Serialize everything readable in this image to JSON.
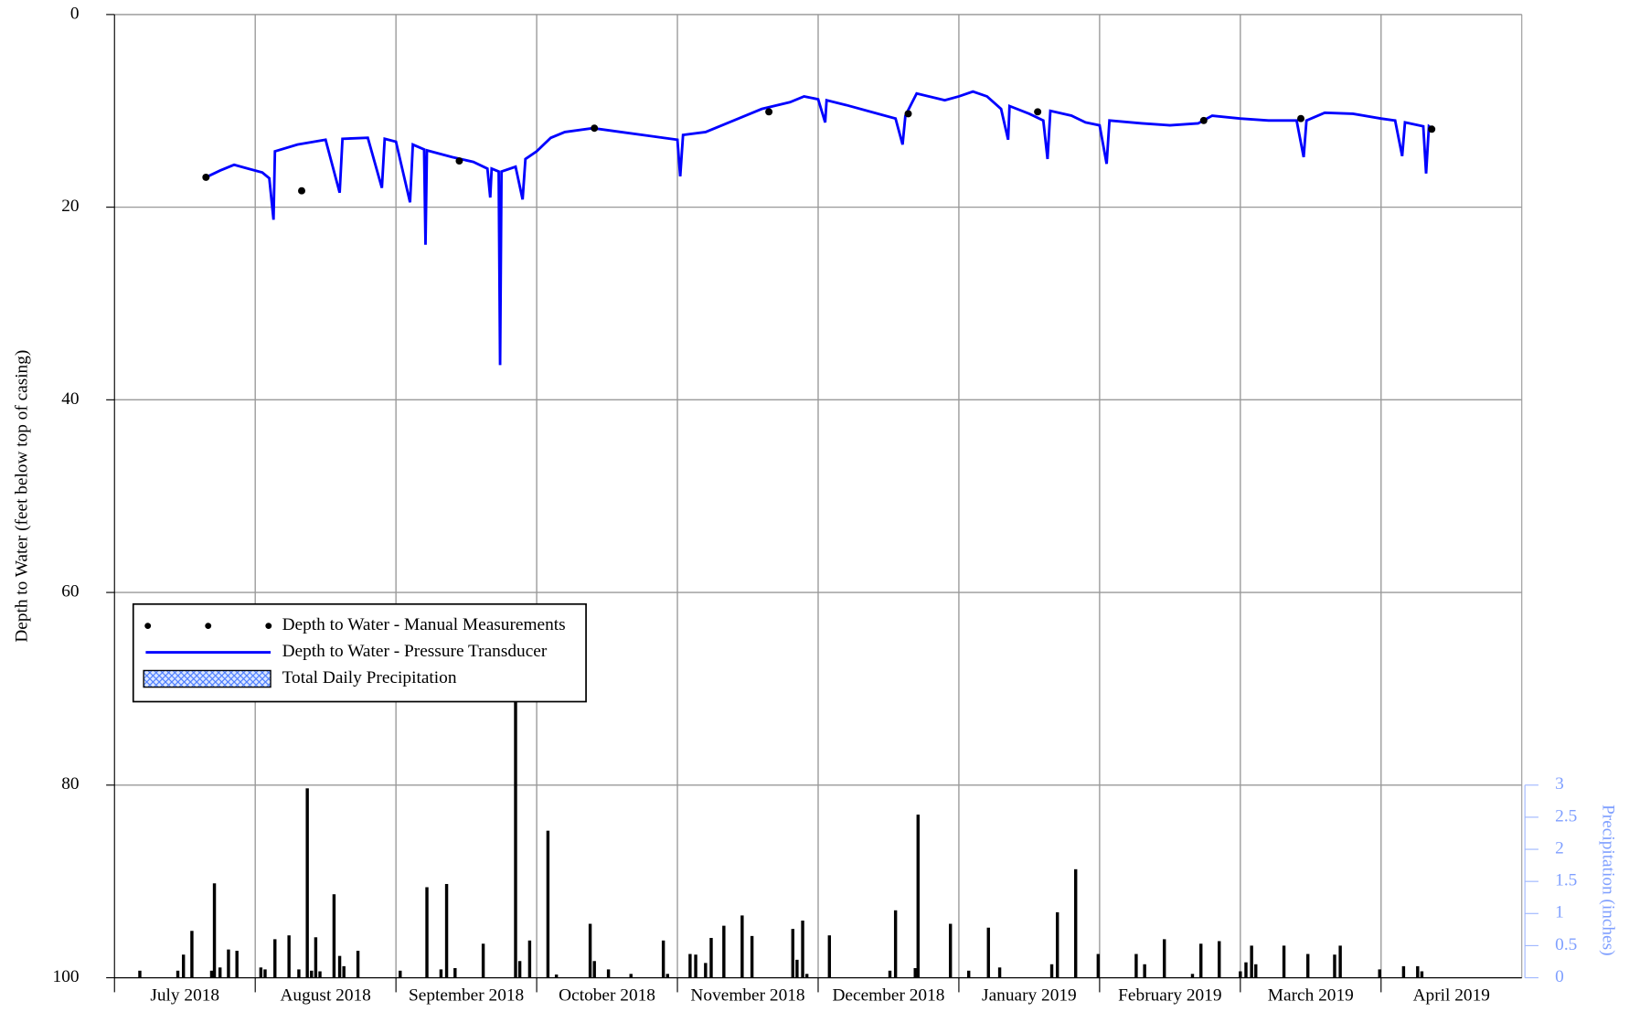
{
  "chart_data": {
    "type": "combo",
    "y_label": "Depth to Water (feet below top of casing)",
    "y2_label": "Precipitation (inches)",
    "xlim": [
      0,
      10
    ],
    "xticks": [
      {
        "value": 0.5,
        "label": "July 2018"
      },
      {
        "value": 1.5,
        "label": "August 2018"
      },
      {
        "value": 2.5,
        "label": "September 2018"
      },
      {
        "value": 3.5,
        "label": "October 2018"
      },
      {
        "value": 4.5,
        "label": "November 2018"
      },
      {
        "value": 5.5,
        "label": "December 2018"
      },
      {
        "value": 6.5,
        "label": "January 2019"
      },
      {
        "value": 7.5,
        "label": "February 2019"
      },
      {
        "value": 8.5,
        "label": "March 2019"
      },
      {
        "value": 9.5,
        "label": "April 2019"
      }
    ],
    "xgrid": [
      1,
      2,
      3,
      4,
      5,
      6,
      7,
      8,
      9
    ],
    "ylim": [
      100,
      0
    ],
    "yticks": [
      0,
      20,
      40,
      60,
      80,
      100
    ],
    "y2lim": [
      0,
      15
    ],
    "y2ticks": [
      0,
      0.5,
      1,
      1.5,
      2,
      2.5,
      3
    ],
    "grid": true,
    "legend": "lower-left",
    "series": [
      {
        "name": "Depth to Water - Manual Measurements",
        "type": "scatter",
        "color": "#000000",
        "x": [
          0.65,
          1.33,
          2.45,
          3.41,
          4.65,
          5.64,
          6.56,
          7.74,
          8.43,
          9.36
        ],
        "values": [
          16.9,
          18.3,
          15.2,
          11.8,
          10.1,
          10.3,
          10.1,
          11.0,
          10.8,
          11.9
        ]
      },
      {
        "name": "Depth to Water - Pressure Transducer",
        "type": "line",
        "color": "#0000ff",
        "x": [
          0.65,
          0.75,
          0.85,
          0.95,
          1.05,
          1.1,
          1.13,
          1.14,
          1.3,
          1.5,
          1.6,
          1.62,
          1.8,
          1.9,
          1.92,
          2.0,
          2.1,
          2.12,
          2.2,
          2.21,
          2.22,
          2.4,
          2.55,
          2.65,
          2.67,
          2.68,
          2.73,
          2.74,
          2.75,
          2.85,
          2.9,
          2.92,
          3.0,
          3.1,
          3.2,
          3.4,
          3.6,
          3.8,
          3.9,
          4.0,
          4.02,
          4.04,
          4.2,
          4.4,
          4.6,
          4.8,
          4.9,
          5.0,
          5.05,
          5.06,
          5.2,
          5.4,
          5.55,
          5.6,
          5.62,
          5.7,
          5.9,
          6.0,
          6.1,
          6.2,
          6.3,
          6.35,
          6.36,
          6.5,
          6.6,
          6.63,
          6.65,
          6.8,
          6.9,
          7.0,
          7.05,
          7.07,
          7.3,
          7.5,
          7.7,
          7.8,
          8.0,
          8.2,
          8.4,
          8.45,
          8.47,
          8.6,
          8.8,
          9.0,
          9.1,
          9.15,
          9.17,
          9.3,
          9.32,
          9.34,
          9.38
        ],
        "values": [
          16.9,
          16.2,
          15.6,
          16.0,
          16.4,
          17.0,
          21.3,
          14.2,
          13.5,
          13.0,
          18.5,
          12.9,
          12.8,
          18.0,
          12.9,
          13.2,
          19.5,
          13.5,
          14.0,
          23.9,
          14.1,
          14.8,
          15.3,
          16.0,
          19.0,
          16.0,
          16.3,
          36.4,
          16.3,
          15.8,
          19.2,
          15.0,
          14.2,
          12.8,
          12.2,
          11.8,
          12.2,
          12.6,
          12.8,
          13.0,
          16.8,
          12.5,
          12.2,
          11.0,
          9.8,
          9.1,
          8.5,
          8.8,
          11.2,
          8.9,
          9.4,
          10.2,
          10.8,
          13.5,
          10.5,
          8.2,
          8.9,
          8.5,
          8.0,
          8.5,
          9.8,
          13.0,
          9.5,
          10.3,
          11.0,
          15.0,
          10.0,
          10.5,
          11.2,
          11.5,
          15.5,
          11.0,
          11.3,
          11.5,
          11.3,
          10.5,
          10.8,
          11.0,
          11.0,
          14.8,
          11.0,
          10.2,
          10.3,
          10.8,
          11.0,
          14.7,
          11.2,
          11.6,
          16.5,
          11.6,
          12.0
        ]
      },
      {
        "name": "Total Daily Precipitation",
        "type": "bar",
        "axis": "y2",
        "color": "#000000",
        "x": [
          0.18,
          0.45,
          0.49,
          0.55,
          0.69,
          0.71,
          0.75,
          0.81,
          0.87,
          1.04,
          1.07,
          1.14,
          1.24,
          1.31,
          1.37,
          1.4,
          1.43,
          1.46,
          1.56,
          1.6,
          1.63,
          1.73,
          2.03,
          2.22,
          2.32,
          2.36,
          2.42,
          2.62,
          2.85,
          2.88,
          2.95,
          3.08,
          3.14,
          3.38,
          3.41,
          3.51,
          3.67,
          3.9,
          3.93,
          4.09,
          4.13,
          4.2,
          4.24,
          4.33,
          4.46,
          4.53,
          4.82,
          4.85,
          4.89,
          4.92,
          5.08,
          5.51,
          5.55,
          5.69,
          5.71,
          5.94,
          6.07,
          6.21,
          6.29,
          6.66,
          6.7,
          6.83,
          6.99,
          7.26,
          7.32,
          7.46,
          7.66,
          7.72,
          7.85,
          8.0,
          8.04,
          8.08,
          8.11,
          8.31,
          8.48,
          8.67,
          8.71,
          8.99,
          9.16,
          9.26,
          9.29
        ],
        "values": [
          0.11,
          0.11,
          0.36,
          0.73,
          0.11,
          1.47,
          0.16,
          0.44,
          0.42,
          0.16,
          0.13,
          0.6,
          0.66,
          0.13,
          2.95,
          0.11,
          0.63,
          0.1,
          1.3,
          0.34,
          0.18,
          0.42,
          0.11,
          1.41,
          0.13,
          1.46,
          0.15,
          0.53,
          4.41,
          0.26,
          0.58,
          2.29,
          0.05,
          0.84,
          0.26,
          0.13,
          0.06,
          0.58,
          0.06,
          0.37,
          0.36,
          0.23,
          0.62,
          0.81,
          0.97,
          0.65,
          0.76,
          0.28,
          0.89,
          0.06,
          0.66,
          0.11,
          1.05,
          0.15,
          2.54,
          0.84,
          0.11,
          0.78,
          0.16,
          0.21,
          1.02,
          1.69,
          0.37,
          0.37,
          0.21,
          0.6,
          0.06,
          0.53,
          0.57,
          0.1,
          0.24,
          0.5,
          0.21,
          0.5,
          0.37,
          0.36,
          0.5,
          0.13,
          0.18,
          0.18,
          0.1
        ]
      }
    ]
  }
}
